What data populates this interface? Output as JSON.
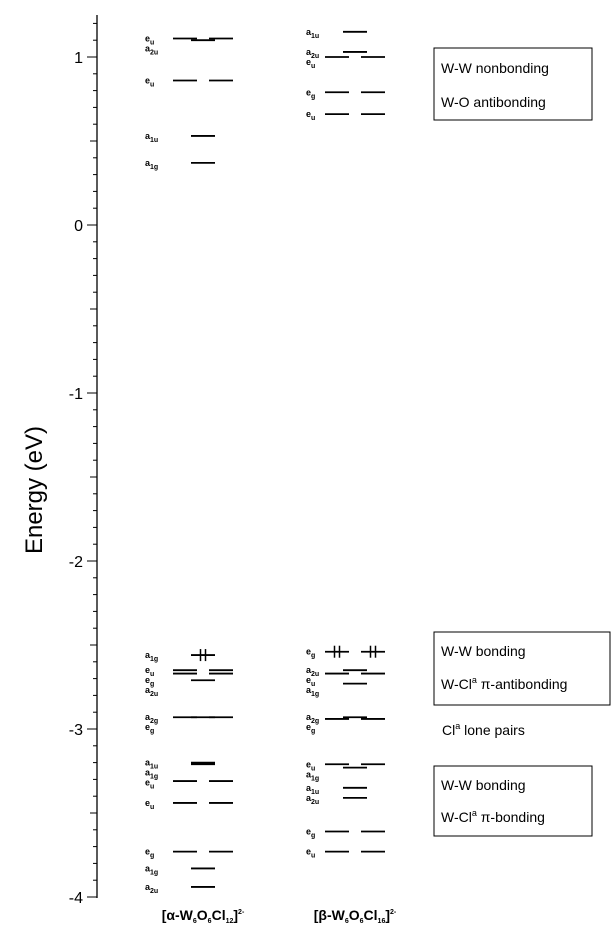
{
  "axis": {
    "ylabel": "Energy (eV)",
    "ylim": [
      -4,
      1.2
    ],
    "ticks": [
      "1",
      "0",
      "-1",
      "-2",
      "-3",
      "-4"
    ]
  },
  "columns": {
    "alpha": {
      "base": "[α-W",
      "s1": "6",
      "m1": "O",
      "s2": "6",
      "m2": "Cl",
      "s3": "12",
      "end": "]",
      "sup": "2-"
    },
    "beta": {
      "base": "[β-W",
      "s1": "6",
      "m1": "O",
      "s2": "6",
      "m2": "Cl",
      "s3": "16",
      "end": "]",
      "sup": "2-"
    }
  },
  "annotations": {
    "box1": [
      "W-W nonbonding",
      "W-O antibonding"
    ],
    "box2_line1": "W-W bonding",
    "box2_line2_pre": "W-Cl",
    "box2_line2_sup": "a",
    "box2_line2_post": " π-antibonding",
    "lone_pre": "Cl",
    "lone_sup": "a",
    "lone_post": " lone pairs",
    "box3_line1": "W-W bonding",
    "box3_line2_pre": "W-Cl",
    "box3_line2_sup": "a",
    "box3_line2_post": " π-bonding"
  },
  "chart_data": {
    "type": "energy-level-diagram",
    "ylabel": "Energy (eV)",
    "ylim": [
      -4,
      1.2
    ],
    "columns": [
      {
        "name": "[α-W6O6Cl12]2-",
        "levels": [
          {
            "sym": "eu",
            "main": "e",
            "sub": "u",
            "energy": 1.11,
            "deg": 2
          },
          {
            "sym": "a2u",
            "main": "a",
            "sub": "2u",
            "energy": 1.1,
            "deg": 1
          },
          {
            "sym": "eu",
            "main": "e",
            "sub": "u",
            "energy": 0.86,
            "deg": 2
          },
          {
            "sym": "a1u",
            "main": "a",
            "sub": "1u",
            "energy": 0.53,
            "deg": 1
          },
          {
            "sym": "a1g",
            "main": "a",
            "sub": "1g",
            "energy": 0.37,
            "deg": 1
          },
          {
            "sym": "a1g",
            "main": "a",
            "sub": "1g",
            "energy": -2.56,
            "deg": 1,
            "occupied": true
          },
          {
            "sym": "eu",
            "main": "e",
            "sub": "u",
            "energy": -2.65,
            "deg": 2
          },
          {
            "sym": "eg",
            "main": "e",
            "sub": "g",
            "energy": -2.67,
            "deg": 2
          },
          {
            "sym": "a2u",
            "main": "a",
            "sub": "2u",
            "energy": -2.71,
            "deg": 1
          },
          {
            "sym": "a2g",
            "main": "a",
            "sub": "2g",
            "energy": -2.93,
            "deg": 1
          },
          {
            "sym": "eg",
            "main": "e",
            "sub": "g",
            "energy": -2.93,
            "deg": 2
          },
          {
            "sym": "a1u",
            "main": "a",
            "sub": "1u",
            "energy": -3.2,
            "deg": 1
          },
          {
            "sym": "a1g",
            "main": "a",
            "sub": "1g",
            "energy": -3.21,
            "deg": 1
          },
          {
            "sym": "eu",
            "main": "e",
            "sub": "u",
            "energy": -3.31,
            "deg": 2
          },
          {
            "sym": "eu",
            "main": "e",
            "sub": "u",
            "energy": -3.44,
            "deg": 2
          },
          {
            "sym": "eg",
            "main": "e",
            "sub": "g",
            "energy": -3.73,
            "deg": 2
          },
          {
            "sym": "a1g",
            "main": "a",
            "sub": "1g",
            "energy": -3.83,
            "deg": 1
          },
          {
            "sym": "a2u",
            "main": "a",
            "sub": "2u",
            "energy": -3.94,
            "deg": 1
          }
        ]
      },
      {
        "name": "[β-W6O6Cl16]2-",
        "levels": [
          {
            "sym": "a1u",
            "main": "a",
            "sub": "1u",
            "energy": 1.15,
            "deg": 1
          },
          {
            "sym": "a2u",
            "main": "a",
            "sub": "2u",
            "energy": 1.03,
            "deg": 1
          },
          {
            "sym": "eu",
            "main": "e",
            "sub": "u",
            "energy": 1.0,
            "deg": 2
          },
          {
            "sym": "eg",
            "main": "e",
            "sub": "g",
            "energy": 0.79,
            "deg": 2
          },
          {
            "sym": "eu",
            "main": "e",
            "sub": "u",
            "energy": 0.66,
            "deg": 2
          },
          {
            "sym": "eg",
            "main": "e",
            "sub": "g",
            "energy": -2.54,
            "deg": 2,
            "occupied": true
          },
          {
            "sym": "a2u",
            "main": "a",
            "sub": "2u",
            "energy": -2.65,
            "deg": 1
          },
          {
            "sym": "eu",
            "main": "e",
            "sub": "u",
            "energy": -2.67,
            "deg": 2
          },
          {
            "sym": "a1g",
            "main": "a",
            "sub": "1g",
            "energy": -2.73,
            "deg": 1
          },
          {
            "sym": "a2g",
            "main": "a",
            "sub": "2g",
            "energy": -2.93,
            "deg": 1
          },
          {
            "sym": "eg",
            "main": "e",
            "sub": "g",
            "energy": -2.94,
            "deg": 2
          },
          {
            "sym": "eu",
            "main": "e",
            "sub": "u",
            "energy": -3.21,
            "deg": 2
          },
          {
            "sym": "a1g",
            "main": "a",
            "sub": "1g",
            "energy": -3.23,
            "deg": 1
          },
          {
            "sym": "a1u",
            "main": "a",
            "sub": "1u",
            "energy": -3.35,
            "deg": 1
          },
          {
            "sym": "a2u",
            "main": "a",
            "sub": "2u",
            "energy": -3.41,
            "deg": 1
          },
          {
            "sym": "eg",
            "main": "e",
            "sub": "g",
            "energy": -3.61,
            "deg": 2
          },
          {
            "sym": "eu",
            "main": "e",
            "sub": "u",
            "energy": -3.73,
            "deg": 2
          }
        ]
      }
    ]
  }
}
